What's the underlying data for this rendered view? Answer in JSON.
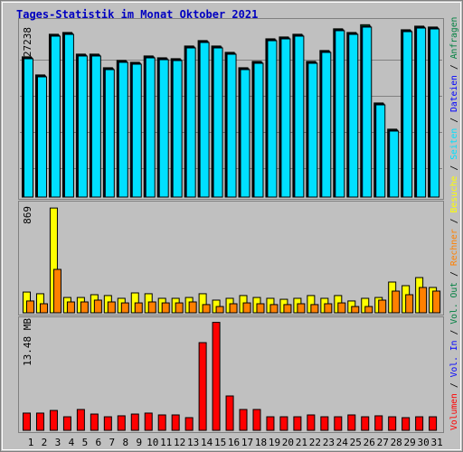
{
  "chart_data": [
    {
      "type": "bar",
      "title": "Tages-Statistik im Monat Oktober 2021",
      "ylim": [
        0,
        28000
      ],
      "yticks": [
        27238
      ],
      "series": [
        {
          "name": "Anfragen",
          "color": "#008040",
          "values": [
            22160,
            19300,
            25730,
            26010,
            22590,
            22590,
            20440,
            21590,
            21300,
            22300,
            22010,
            21870,
            23870,
            24730,
            23870,
            22870,
            20440,
            21440,
            25010,
            25300,
            25730,
            21440,
            23160,
            26590,
            26010,
            27238,
            14870,
            10730,
            26440,
            27010,
            26870
          ]
        },
        {
          "name": "Dateien",
          "color": "#0000ff",
          "values": [
            22010,
            19150,
            25580,
            25860,
            22440,
            22440,
            20290,
            21440,
            21150,
            22150,
            21860,
            21720,
            23720,
            24580,
            23720,
            22720,
            20290,
            21290,
            24860,
            25150,
            25580,
            21290,
            23010,
            26440,
            25860,
            27010,
            14720,
            10580,
            26290,
            26860,
            26720
          ]
        },
        {
          "name": "Seiten",
          "color": "#00e0ff",
          "values": [
            21860,
            19000,
            25430,
            25710,
            22290,
            22290,
            20140,
            21290,
            21000,
            22000,
            21710,
            21570,
            23570,
            24430,
            23570,
            22570,
            20140,
            21140,
            24710,
            25000,
            25430,
            21140,
            22860,
            26290,
            25710,
            26860,
            14570,
            10430,
            26140,
            26710,
            26570
          ]
        }
      ]
    },
    {
      "type": "bar",
      "ylim": [
        0,
        900
      ],
      "yticks": [
        869
      ],
      "series": [
        {
          "name": "Besuche",
          "color": "#ffff00",
          "values": [
            172,
            158,
            869,
            127,
            127,
            150,
            143,
            120,
            165,
            158,
            120,
            120,
            127,
            158,
            105,
            120,
            143,
            127,
            120,
            112,
            120,
            143,
            120,
            143,
            98,
            120,
            127,
            255,
            225,
            292,
            210
          ]
        },
        {
          "name": "Rechner",
          "color": "#ff8000",
          "values": [
            98,
            75,
            360,
            90,
            90,
            105,
            90,
            82,
            82,
            90,
            82,
            82,
            90,
            68,
            52,
            75,
            82,
            75,
            68,
            68,
            75,
            68,
            75,
            82,
            52,
            52,
            105,
            180,
            150,
            210,
            180
          ]
        }
      ]
    },
    {
      "type": "bar",
      "ylim": [
        0,
        14
      ],
      "yticks": [
        {
          "value": 13.48,
          "label": "13.48 MB"
        }
      ],
      "categories": [
        "1",
        "2",
        "3",
        "4",
        "5",
        "6",
        "7",
        "8",
        "9",
        "10",
        "11",
        "12",
        "13",
        "14",
        "15",
        "16",
        "17",
        "18",
        "19",
        "20",
        "21",
        "22",
        "23",
        "24",
        "25",
        "26",
        "27",
        "28",
        "29",
        "30",
        "31"
      ],
      "category_colors": [
        "#000000",
        "#008040",
        "#008040",
        "#000000",
        "#000000",
        "#000000",
        "#000000",
        "#000000",
        "#008040",
        "#008040",
        "#000000",
        "#000000",
        "#000000",
        "#000000",
        "#000000",
        "#008040",
        "#008040",
        "#000000",
        "#000000",
        "#000000",
        "#000000",
        "#000000",
        "#008040",
        "#008040",
        "#000000",
        "#000000",
        "#000000",
        "#000000",
        "#000000",
        "#008040",
        "#008040"
      ],
      "series": [
        {
          "name": "Volumen",
          "color": "#ff0000",
          "values": [
            2.15,
            2.15,
            2.48,
            1.69,
            2.6,
            2.03,
            1.69,
            1.81,
            2.03,
            2.15,
            1.92,
            1.92,
            1.58,
            10.95,
            13.48,
            4.29,
            2.6,
            2.6,
            1.69,
            1.69,
            1.69,
            1.92,
            1.69,
            1.69,
            1.92,
            1.69,
            1.81,
            1.69,
            1.58,
            1.69,
            1.69
          ]
        }
      ],
      "legend_extra": [
        {
          "name": "Vol. In",
          "color": "#0000ff"
        },
        {
          "name": "Vol. Out",
          "color": "#008040"
        }
      ]
    }
  ],
  "legend_separator": "/"
}
